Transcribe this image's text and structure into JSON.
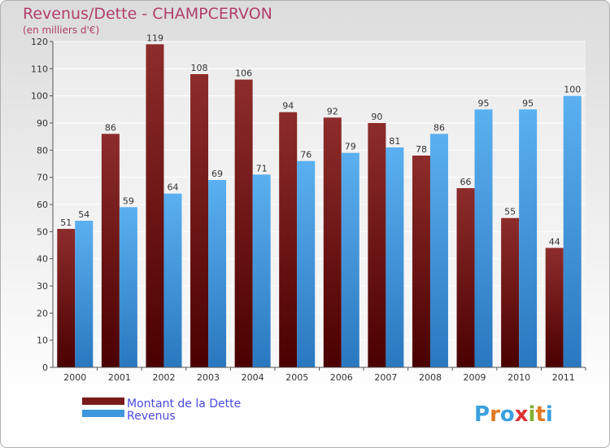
{
  "chart_data": {
    "type": "bar",
    "title": "Revenus/Dette - CHAMPCERVON",
    "subtitle": "(en milliers d'€)",
    "categories": [
      "2000",
      "2001",
      "2002",
      "2003",
      "2004",
      "2005",
      "2006",
      "2007",
      "2008",
      "2009",
      "2010",
      "2011"
    ],
    "series": [
      {
        "name": "Montant de la Dette",
        "values": [
          51,
          86,
          119,
          108,
          106,
          94,
          92,
          90,
          78,
          66,
          55,
          44
        ],
        "color": "#7a1a1a"
      },
      {
        "name": "Revenus",
        "values": [
          54,
          59,
          64,
          69,
          71,
          76,
          79,
          81,
          86,
          95,
          95,
          100
        ],
        "color": "#3d97dc"
      }
    ],
    "ylim": [
      0,
      120
    ],
    "y_ticks": [
      0,
      10,
      20,
      30,
      40,
      50,
      60,
      70,
      80,
      90,
      100,
      110,
      120
    ],
    "grid": true,
    "legend_position": "bottom-left"
  },
  "branding": {
    "letters": [
      "P",
      "r",
      "o",
      "x",
      "i",
      "t",
      "i"
    ],
    "colors": [
      "#3aa0e0",
      "#e07a20",
      "#3aa0e0",
      "#e03030",
      "#80b030",
      "#e07a20",
      "#3aa0e0"
    ]
  }
}
